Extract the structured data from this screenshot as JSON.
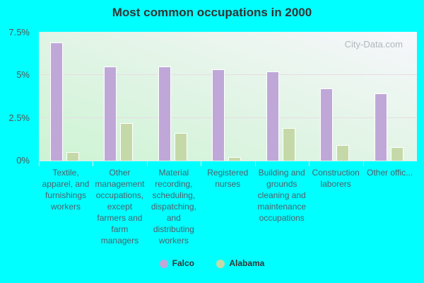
{
  "title": "Most common occupations in 2000",
  "watermark": "City-Data.com",
  "y_ticks": [
    "7.5%",
    "5%",
    "2.5%",
    "0%"
  ],
  "legend": [
    {
      "label": "Falco",
      "color": "#bfa8d8"
    },
    {
      "label": "Alabama",
      "color": "#c5d9a8"
    }
  ],
  "chart_data": {
    "type": "bar",
    "title": "Most common occupations in 2000",
    "xlabel": "",
    "ylabel": "",
    "ylim": [
      0,
      7.5
    ],
    "y_ticks": [
      0,
      2.5,
      5,
      7.5
    ],
    "y_format": "percent",
    "grid": true,
    "legend_position": "bottom",
    "categories": [
      "Textile, apparel, and furnishings workers",
      "Other management occupations, except farmers and farm managers",
      "Material recording, scheduling, dispatching, and distributing workers",
      "Registered nurses",
      "Building and grounds cleaning and maintenance occupations",
      "Construction laborers",
      "Other offic..."
    ],
    "series": [
      {
        "name": "Falco",
        "color": "#bfa8d8",
        "values": [
          6.9,
          5.5,
          5.5,
          5.3,
          5.2,
          4.2,
          3.9
        ]
      },
      {
        "name": "Alabama",
        "color": "#c5d9a8",
        "values": [
          0.5,
          2.2,
          1.6,
          0.2,
          1.9,
          0.9,
          0.8
        ]
      }
    ]
  }
}
